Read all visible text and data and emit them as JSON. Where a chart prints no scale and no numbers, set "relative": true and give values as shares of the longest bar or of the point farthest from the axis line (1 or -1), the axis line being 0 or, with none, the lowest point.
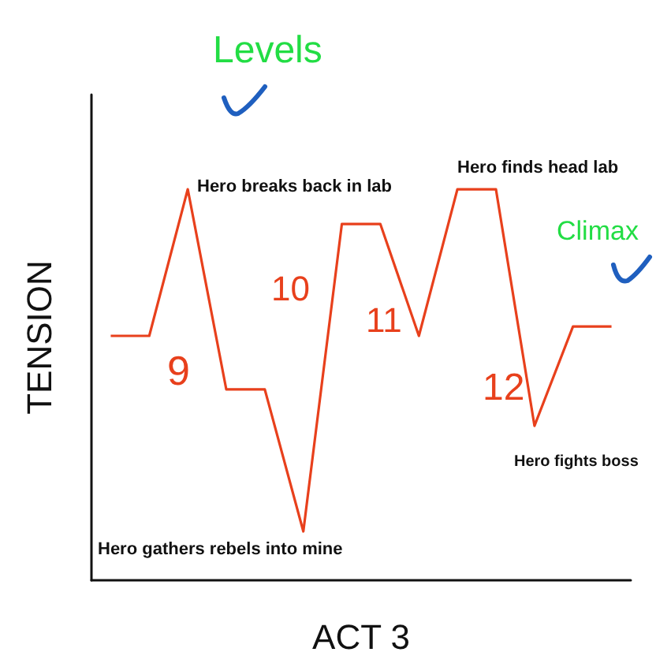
{
  "chart_data": {
    "type": "line",
    "relative": true,
    "xlabel": "ACT 3",
    "ylabel": "TENSION",
    "categories": [
      null,
      null,
      null,
      null,
      null,
      null,
      null,
      null,
      null,
      null,
      null,
      null,
      null,
      null
    ],
    "series": [
      {
        "color": "#e8401c",
        "values": [
          0.625,
          0.625,
          1,
          0.488,
          0.488,
          0.125,
          0.911,
          0.911,
          0.625,
          1,
          1,
          0.395,
          0.649,
          0.649
        ]
      }
    ],
    "marker": "none",
    "line_style": "solid",
    "grid": false,
    "annotations": [
      "Hero breaks back in lab",
      "Hero finds head lab",
      "Hero gathers rebels into mine",
      "Hero fights boss",
      "Levels",
      "Climax",
      "9",
      "10",
      "11",
      "12"
    ]
  }
}
